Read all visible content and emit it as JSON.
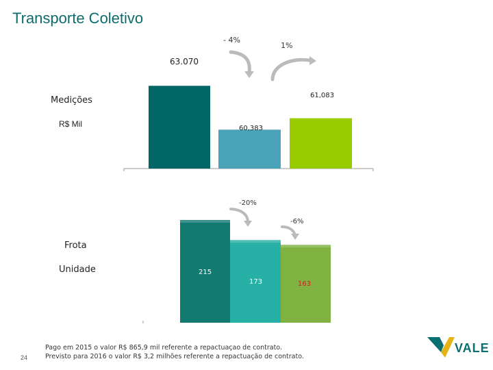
{
  "page": {
    "title": "Transporte Coletivo",
    "page_number": "24",
    "footer_lines": [
      "Pago em 2015 o valor R$ 865,9 mil referente a repactuaçao de contrato.",
      "Previsto para 2016 o valor R$ 3,2 milhões referente a repactuação de contrato."
    ],
    "logo_text": "VALE"
  },
  "chart_data": [
    {
      "type": "bar",
      "title": "Medições",
      "ylabel": "R$ Mil",
      "categories": [
        "",
        "",
        ""
      ],
      "values": [
        63070,
        60383,
        61083
      ],
      "value_labels": [
        "63.070",
        "60,383",
        "61,083"
      ],
      "colors": [
        "#006666",
        "#4aa3b8",
        "#99cc00"
      ],
      "ylim": [
        58000,
        63500
      ],
      "change_labels": [
        "- 4%",
        "1%"
      ],
      "grid": false
    },
    {
      "type": "bar",
      "title": "Frota",
      "ylabel": "Unidade",
      "categories": [
        "",
        "",
        ""
      ],
      "values": [
        215,
        173,
        163
      ],
      "value_labels": [
        "215",
        "173",
        "163"
      ],
      "colors": [
        "#137a72",
        "#27b0a5",
        "#7fb241"
      ],
      "ylim": [
        0,
        215
      ],
      "change_labels": [
        "-20%",
        "-6%"
      ],
      "grid": false
    }
  ]
}
